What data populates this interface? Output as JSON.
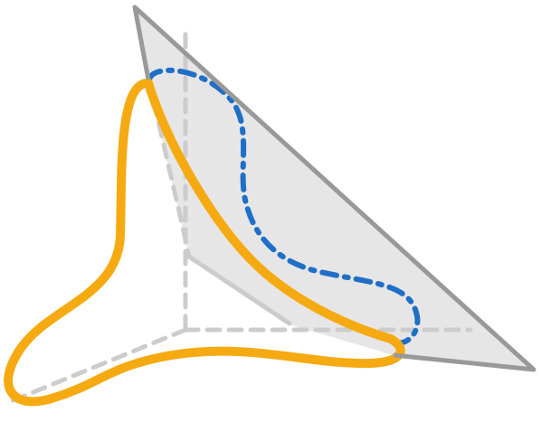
{
  "colors": {
    "background": "#ffffff",
    "plane_fill": "#e6e6e6",
    "plane_edge": "#999999",
    "axes": "#cccccc",
    "dashed_curve": "#1f6fc7",
    "solid_curve": "#f5aa12"
  }
}
